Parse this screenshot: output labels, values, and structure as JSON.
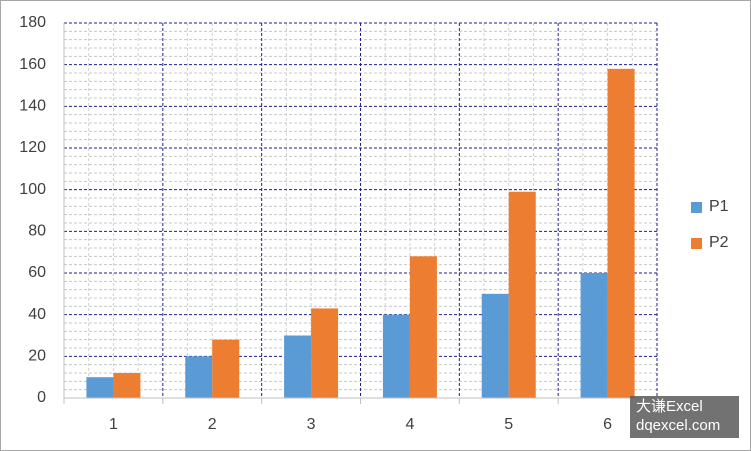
{
  "chart_data": {
    "type": "bar",
    "categories": [
      "1",
      "2",
      "3",
      "4",
      "5",
      "6"
    ],
    "series": [
      {
        "name": "P1",
        "color": "#5b9bd5",
        "values": [
          10,
          20,
          30,
          40,
          50,
          60
        ]
      },
      {
        "name": "P2",
        "color": "#ed7d31",
        "values": [
          12,
          28,
          43,
          68,
          99,
          158
        ]
      }
    ],
    "ylim": [
      0,
      180
    ],
    "yticks": [
      0,
      20,
      40,
      60,
      80,
      100,
      120,
      140,
      160,
      180
    ],
    "grid": true,
    "minor_grid": true,
    "legend": "right",
    "watermark": [
      "大谦Excel",
      "dqexcel.com"
    ]
  }
}
